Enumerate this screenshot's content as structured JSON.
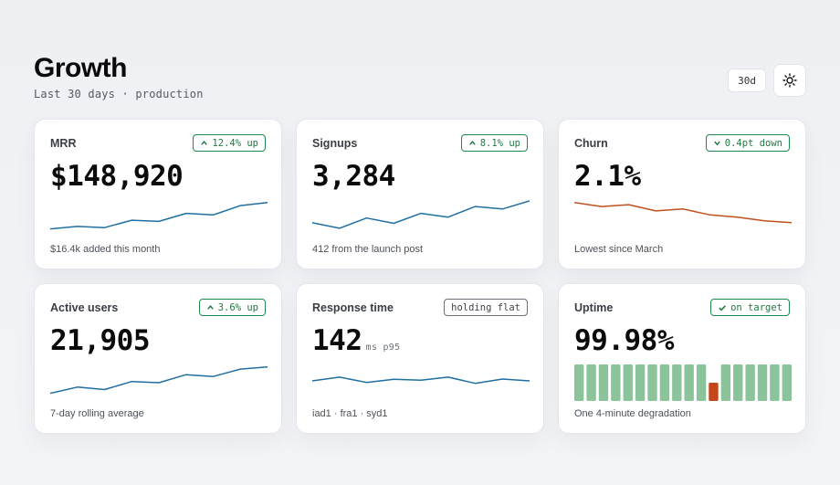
{
  "header": {
    "title": "Growth",
    "subtitle": "Last 30 days · production"
  },
  "controls": {
    "range_label": "30d",
    "theme_icon": "sun-icon"
  },
  "colors": {
    "line_blue": "#1f6fa3",
    "line_orange": "#c0501f",
    "good": "#1f8a4c",
    "uptime_ok": "#8bc39b",
    "uptime_bad": "#c4471c"
  },
  "cards": [
    {
      "label": "MRR",
      "badge": "12.4% up",
      "badge_direction": "up",
      "value": "$148,920",
      "unit": "",
      "note": "$16.4k added this month",
      "spark": [
        0.1,
        0.18,
        0.14,
        0.38,
        0.34,
        0.6,
        0.55,
        0.85,
        0.95
      ],
      "spark_color": "blue"
    },
    {
      "label": "Signups",
      "badge": "8.1% up",
      "badge_direction": "up",
      "value": "3,284",
      "unit": "",
      "note": "412 from the launch post",
      "spark": [
        0.3,
        0.12,
        0.45,
        0.28,
        0.6,
        0.48,
        0.82,
        0.74,
        1.0
      ],
      "spark_color": "blue"
    },
    {
      "label": "Churn",
      "badge": "0.4pt down",
      "badge_direction": "down",
      "value": "2.1%",
      "unit": "",
      "note": "Lowest since March",
      "spark": [
        0.95,
        0.82,
        0.88,
        0.68,
        0.74,
        0.55,
        0.48,
        0.36,
        0.3
      ],
      "spark_color": "orange"
    },
    {
      "label": "Active users",
      "badge": "3.6% up",
      "badge_direction": "up",
      "value": "21,905",
      "unit": "",
      "note": "7-day rolling average",
      "spark": [
        0.1,
        0.3,
        0.22,
        0.48,
        0.44,
        0.7,
        0.64,
        0.88,
        0.95
      ],
      "spark_color": "blue"
    },
    {
      "label": "Response time",
      "badge": "holding flat",
      "badge_direction": "none",
      "value": "142",
      "unit": "ms p95",
      "note": "iad1 · fra1 · syd1",
      "spark": [
        0.5,
        0.62,
        0.45,
        0.55,
        0.52,
        0.62,
        0.42,
        0.56,
        0.5
      ],
      "spark_color": "blue"
    },
    {
      "label": "Uptime",
      "badge": "on target",
      "badge_direction": "check",
      "value": "99.98%",
      "unit": "",
      "note": "One 4-minute degradation",
      "uptime": [
        "ok",
        "ok",
        "ok",
        "ok",
        "ok",
        "ok",
        "ok",
        "ok",
        "ok",
        "ok",
        "ok",
        "bad",
        "ok",
        "ok",
        "ok",
        "ok",
        "ok",
        "ok"
      ]
    }
  ]
}
